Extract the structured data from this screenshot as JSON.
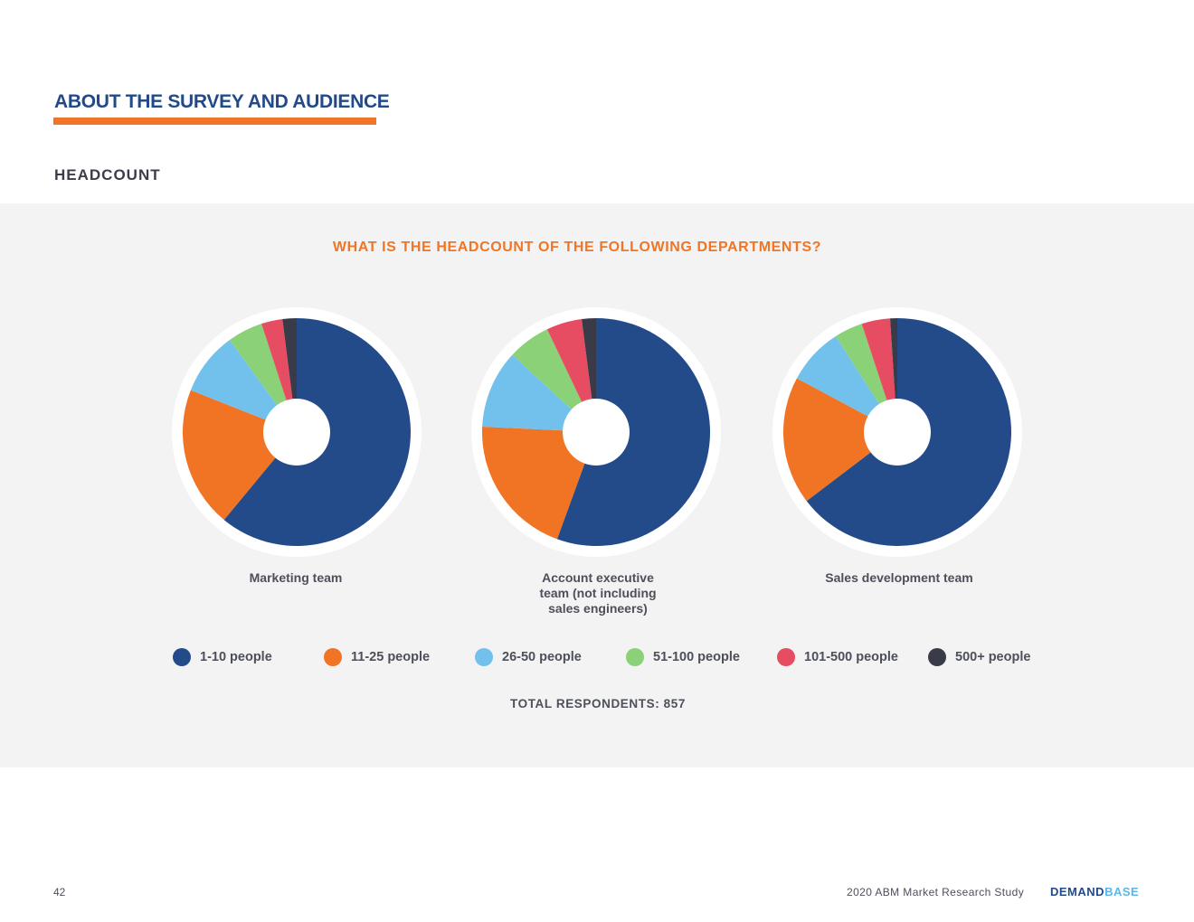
{
  "header": {
    "section_title": "ABOUT THE SURVEY AND AUDIENCE",
    "sub_heading": "HEADCOUNT"
  },
  "question": "WHAT IS THE HEADCOUNT OF THE FOLLOWING DEPARTMENTS?",
  "legend": [
    {
      "label": "1-10 people",
      "color": "#234a89"
    },
    {
      "label": "11-25 people",
      "color": "#f07424"
    },
    {
      "label": "26-50 people",
      "color": "#71c1ec"
    },
    {
      "label": "51-100 people",
      "color": "#8bd177"
    },
    {
      "label": "101-500 people",
      "color": "#e64d62"
    },
    {
      "label": "500+ people",
      "color": "#3a3b49"
    }
  ],
  "total_respondents": "TOTAL RESPONDENTS: 857",
  "footer": {
    "page_number": "42",
    "study_title": "2020 ABM Market Research Study",
    "logo_part1": "DEMAND",
    "logo_part2": "BASE"
  },
  "chart_data": [
    {
      "type": "pie",
      "title": "Marketing team",
      "categories": [
        "1-10 people",
        "11-25 people",
        "26-50 people",
        "51-100 people",
        "101-500 people",
        "500+ people"
      ],
      "values": [
        61,
        20,
        9,
        5,
        3,
        2
      ]
    },
    {
      "type": "pie",
      "title": "Account executive team (not including sales engineers)",
      "categories": [
        "1-10 people",
        "11-25 people",
        "26-50 people",
        "51-100 people",
        "101-500 people",
        "500+ people"
      ],
      "values": [
        55,
        20,
        11,
        6,
        5,
        2
      ]
    },
    {
      "type": "pie",
      "title": "Sales development team",
      "categories": [
        "1-10 people",
        "11-25 people",
        "26-50 people",
        "51-100 people",
        "101-500 people",
        "500+ people"
      ],
      "values": [
        64,
        18,
        8,
        4,
        4,
        1
      ]
    }
  ]
}
